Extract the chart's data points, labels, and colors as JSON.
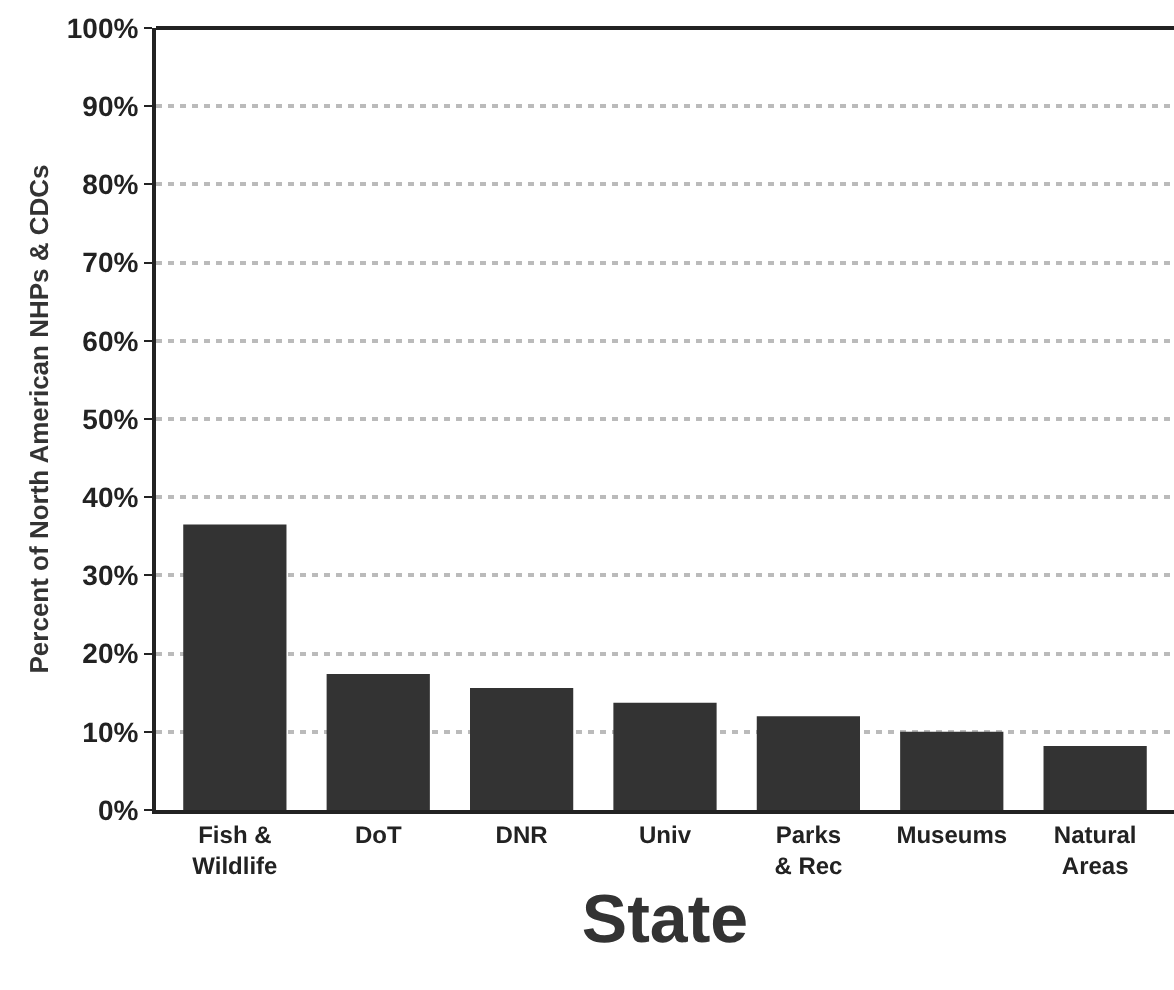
{
  "chart_data": {
    "type": "bar",
    "xlabel": "State",
    "ylabel": "Percent of North American NHPs & CDCs",
    "categories": [
      "Fish &\nWildlife",
      "DoT",
      "DNR",
      "Univ",
      "Parks\n& Rec",
      "Museums",
      "Natural\nAreas"
    ],
    "values": [
      36.5,
      17.4,
      15.6,
      13.7,
      12.0,
      10.0,
      8.2
    ],
    "color": "#333333",
    "ylim": [
      0,
      100
    ],
    "yticks": [
      {
        "value": 0,
        "label": "0%"
      },
      {
        "value": 10,
        "label": "10%"
      },
      {
        "value": 20,
        "label": "20%"
      },
      {
        "value": 30,
        "label": "30%"
      },
      {
        "value": 40,
        "label": "40%"
      },
      {
        "value": 50,
        "label": "50%"
      },
      {
        "value": 60,
        "label": "60%"
      },
      {
        "value": 70,
        "label": "70%"
      },
      {
        "value": 80,
        "label": "80%"
      },
      {
        "value": 90,
        "label": "90%"
      },
      {
        "value": 100,
        "label": "100%"
      }
    ],
    "grid": "y"
  }
}
